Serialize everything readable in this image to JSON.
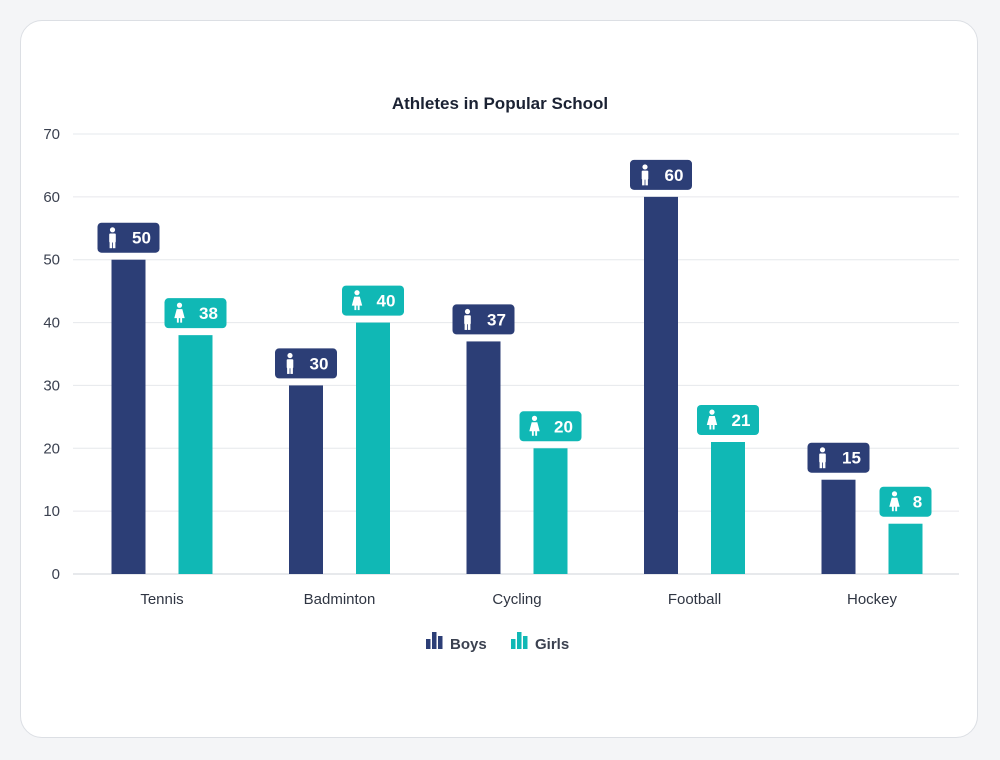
{
  "colors": {
    "boys": "#2c3e76",
    "girls": "#10b8b5",
    "grid": "#e6e8ec",
    "axis": "#cfd3da"
  },
  "icons": {
    "boys": "male-person-icon",
    "girls": "female-person-icon",
    "legend": "bar-chart-icon"
  },
  "chart_data": {
    "type": "bar",
    "title": "Athletes in Popular School",
    "xlabel": "",
    "ylabel": "",
    "categories": [
      "Tennis",
      "Badminton",
      "Cycling",
      "Football",
      "Hockey"
    ],
    "series": [
      {
        "name": "Boys",
        "values": [
          50,
          30,
          37,
          60,
          15
        ]
      },
      {
        "name": "Girls",
        "values": [
          38,
          40,
          20,
          21,
          8
        ]
      }
    ],
    "ylim": [
      0,
      70
    ],
    "yticks": [
      0,
      10,
      20,
      30,
      40,
      50,
      60,
      70
    ],
    "grid": true,
    "legend_position": "bottom"
  }
}
